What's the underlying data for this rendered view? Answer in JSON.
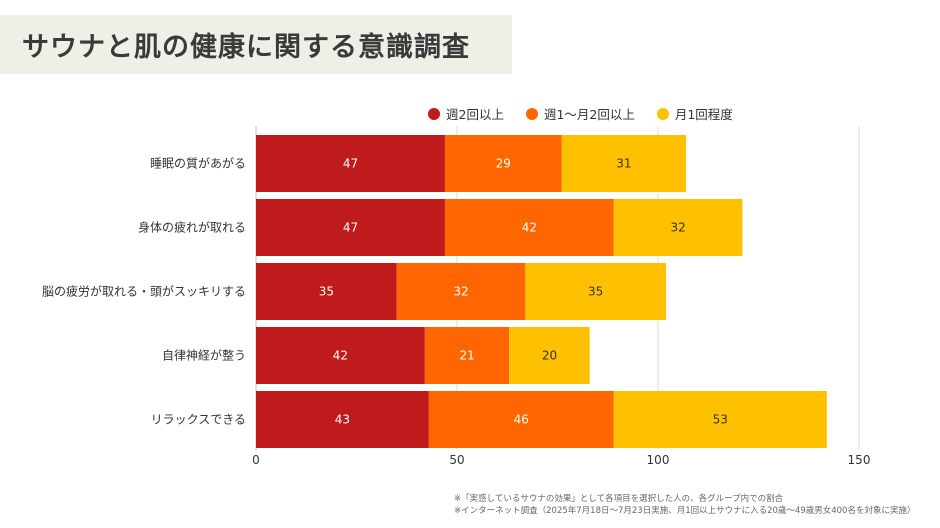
{
  "title": "サウナと肌の健康に関する意識調査",
  "colors": {
    "series": [
      "#bf1a1c",
      "#ff6600",
      "#ffc000"
    ],
    "title_bg": "#efeee7",
    "grid": "#d9d9d9",
    "text": "#333333"
  },
  "chart_data": {
    "type": "bar",
    "orientation": "horizontal",
    "stacked": true,
    "categories": [
      "睡眠の質があがる",
      "身体の疲れが取れる",
      "脳の疲労が取れる・頭がスッキリする",
      "自律神経が整う",
      "リラックスできる"
    ],
    "series": [
      {
        "name": "週2回以上",
        "values": [
          47,
          47,
          35,
          42,
          43
        ]
      },
      {
        "name": "週1〜月2回以上",
        "values": [
          29,
          42,
          32,
          21,
          46
        ]
      },
      {
        "name": "月1回程度",
        "values": [
          31,
          32,
          35,
          20,
          53
        ]
      }
    ],
    "xlim": [
      0,
      150
    ],
    "xticks": [
      "0",
      "50",
      "100",
      "150"
    ],
    "grid": true,
    "legend_position": "top-right"
  },
  "notes": [
    "※「実感しているサウナの効果」として各項目を選択した人の、各グループ内での割合",
    "※インターネット調査（2025年7月18日〜7月23日実施、月1回以上サウナに入る20歳〜49歳男女400名を対象に実施）"
  ]
}
